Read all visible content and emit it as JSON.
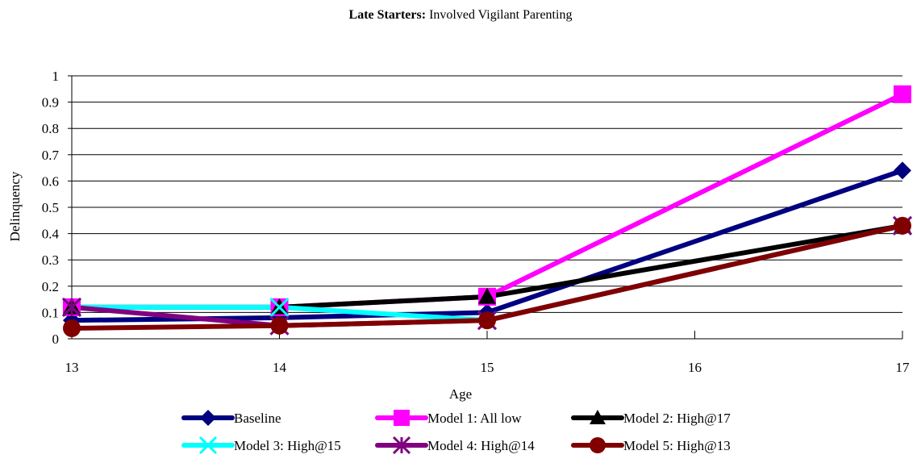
{
  "chart_data": {
    "type": "line",
    "title_prefix": "Late Starters:",
    "title_rest": " Involved Vigilant Parenting",
    "xlabel": "Age",
    "ylabel": "Delinquency",
    "x": [
      13,
      14,
      15,
      16,
      17
    ],
    "x_tick_labels": [
      "13",
      "14",
      "15",
      "16",
      "17"
    ],
    "ylim": [
      0,
      1
    ],
    "y_ticks": [
      0,
      0.1,
      0.2,
      0.3,
      0.4,
      0.5,
      0.6,
      0.7,
      0.8,
      0.9,
      1
    ],
    "y_tick_labels": [
      "0",
      "0.1",
      "0.2",
      "0.3",
      "0.4",
      "0.5",
      "0.6",
      "0.7",
      "0.8",
      "0.9",
      "1"
    ],
    "grid": "horizontal",
    "legend_position": "bottom",
    "series": [
      {
        "name": "Baseline",
        "color": "#000080",
        "marker": "diamond",
        "points": [
          [
            13,
            0.07
          ],
          [
            14,
            0.08
          ],
          [
            15,
            0.1
          ],
          [
            17,
            0.64
          ]
        ]
      },
      {
        "name": "Model 1: All low",
        "color": "#ff00ff",
        "marker": "square",
        "points": [
          [
            13,
            0.12
          ],
          [
            14,
            0.12
          ],
          [
            15,
            0.16
          ],
          [
            17,
            0.93
          ]
        ]
      },
      {
        "name": "Model 2: High@17",
        "color": "#000000",
        "marker": "triangle",
        "points": [
          [
            13,
            0.12
          ],
          [
            14,
            0.12
          ],
          [
            15,
            0.16
          ],
          [
            17,
            0.43
          ]
        ]
      },
      {
        "name": "Model 3: High@15",
        "color": "#00ffff",
        "marker": "x",
        "points": [
          [
            13,
            0.12
          ],
          [
            14,
            0.12
          ],
          [
            15,
            0.07
          ],
          [
            17,
            0.43
          ]
        ]
      },
      {
        "name": "Model 4: High@14",
        "color": "#800080",
        "marker": "star",
        "points": [
          [
            13,
            0.12
          ],
          [
            14,
            0.05
          ],
          [
            15,
            0.07
          ],
          [
            17,
            0.43
          ]
        ]
      },
      {
        "name": "Model 5: High@13",
        "color": "#800000",
        "marker": "circle",
        "points": [
          [
            13,
            0.04
          ],
          [
            14,
            0.05
          ],
          [
            15,
            0.07
          ],
          [
            17,
            0.43
          ]
        ]
      }
    ]
  }
}
